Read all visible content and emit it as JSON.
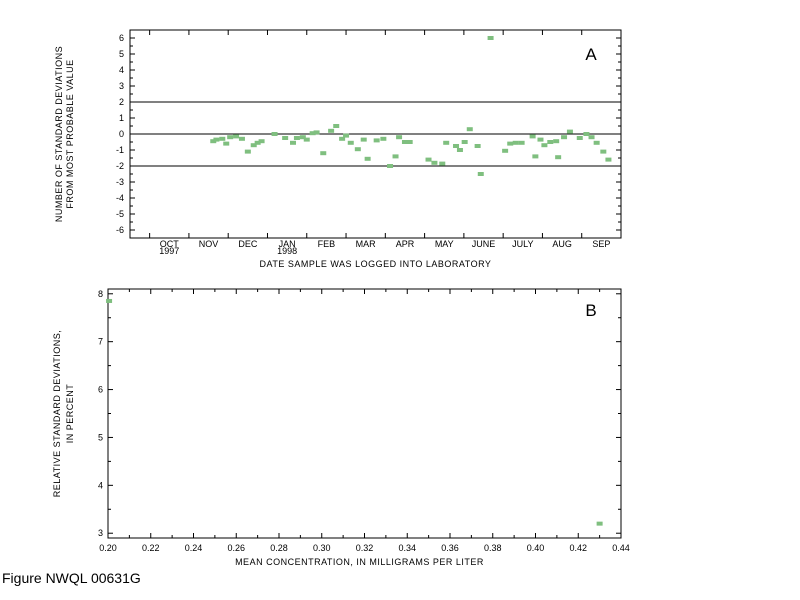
{
  "caption": "Figure NWQL 00631G",
  "colors": {
    "point": "#7fbf7f",
    "axis": "#000000"
  },
  "chart_data": [
    {
      "type": "scatter",
      "panel_label": "A",
      "ylabel": [
        "NUMBER OF STANDARD DEVIATIONS",
        "FROM MOST PROBABLE VALUE"
      ],
      "xlabel": "DATE SAMPLE WAS LOGGED INTO LABORATORY",
      "ylim": [
        -6.5,
        6.5
      ],
      "yticks": [
        "6",
        "5",
        "4",
        "3",
        "2",
        "1",
        "0",
        "-1",
        "-2",
        "-3",
        "-4",
        "-5",
        "-6"
      ],
      "x_unit": "month (1 = Oct 1997)",
      "xlim": [
        0.0,
        12.5
      ],
      "month_labels": [
        "OCT",
        "NOV",
        "DEC",
        "JAN",
        "FEB",
        "MAR",
        "APR",
        "MAY",
        "JUNE",
        "JULY",
        "AUG",
        "SEP"
      ],
      "year_labels": [
        {
          "month": "OCT",
          "year": "1997"
        },
        {
          "month": "JAN",
          "year": "1998"
        }
      ],
      "reference_lines": [
        2,
        0,
        -2
      ],
      "grid": false,
      "points": [
        [
          2.12,
          -0.45
        ],
        [
          2.2,
          -0.35
        ],
        [
          2.35,
          -0.3
        ],
        [
          2.45,
          -0.6
        ],
        [
          2.55,
          -0.2
        ],
        [
          2.7,
          -0.15
        ],
        [
          2.85,
          -0.3
        ],
        [
          3.0,
          -1.1
        ],
        [
          3.15,
          -0.7
        ],
        [
          3.25,
          -0.55
        ],
        [
          3.35,
          -0.45
        ],
        [
          3.68,
          0.0
        ],
        [
          3.95,
          -0.25
        ],
        [
          4.15,
          -0.55
        ],
        [
          4.25,
          -0.25
        ],
        [
          4.4,
          -0.2
        ],
        [
          4.5,
          -0.35
        ],
        [
          4.65,
          0.05
        ],
        [
          4.75,
          0.1
        ],
        [
          4.92,
          -1.2
        ],
        [
          5.12,
          0.2
        ],
        [
          5.25,
          0.5
        ],
        [
          5.4,
          -0.3
        ],
        [
          5.5,
          -0.1
        ],
        [
          5.62,
          -0.55
        ],
        [
          5.8,
          -0.95
        ],
        [
          5.95,
          -0.35
        ],
        [
          6.05,
          -1.55
        ],
        [
          6.28,
          -0.4
        ],
        [
          6.45,
          -0.3
        ],
        [
          6.62,
          -2.0
        ],
        [
          6.76,
          -1.4
        ],
        [
          6.85,
          -0.2
        ],
        [
          7.0,
          -0.5
        ],
        [
          7.12,
          -0.5
        ],
        [
          7.6,
          -1.6
        ],
        [
          7.75,
          -1.8
        ],
        [
          7.95,
          -1.85
        ],
        [
          8.05,
          -0.55
        ],
        [
          8.3,
          -0.75
        ],
        [
          8.4,
          -1.0
        ],
        [
          8.52,
          -0.5
        ],
        [
          8.65,
          0.3
        ],
        [
          8.85,
          -0.75
        ],
        [
          8.93,
          -2.5
        ],
        [
          9.18,
          6.0
        ],
        [
          9.55,
          -1.05
        ],
        [
          9.68,
          -0.6
        ],
        [
          9.82,
          -0.55
        ],
        [
          9.97,
          -0.55
        ],
        [
          10.25,
          -0.15
        ],
        [
          10.32,
          -1.4
        ],
        [
          10.45,
          -0.35
        ],
        [
          10.55,
          -0.7
        ],
        [
          10.7,
          -0.5
        ],
        [
          10.85,
          -0.45
        ],
        [
          10.9,
          -1.45
        ],
        [
          11.05,
          -0.2
        ],
        [
          11.2,
          0.15
        ],
        [
          11.45,
          -0.25
        ],
        [
          11.62,
          0.0
        ],
        [
          11.75,
          -0.2
        ],
        [
          11.88,
          -0.55
        ],
        [
          12.05,
          -1.1
        ],
        [
          12.18,
          -1.6
        ]
      ]
    },
    {
      "type": "scatter",
      "panel_label": "B",
      "ylabel": [
        "RELATIVE STANDARD DEVIATIONS,",
        "IN PERCENT"
      ],
      "xlabel": "MEAN CONCENTRATION, IN MILLIGRAMS PER LITER",
      "xlim": [
        0.2,
        0.44
      ],
      "ylim": [
        2.9,
        8.1
      ],
      "xticks": [
        "0.20",
        "0.22",
        "0.24",
        "0.26",
        "0.28",
        "0.30",
        "0.32",
        "0.34",
        "0.36",
        "0.38",
        "0.40",
        "0.42",
        "0.44"
      ],
      "yticks": [
        "8",
        "7",
        "6",
        "5",
        "4",
        "3"
      ],
      "grid": false,
      "points": [
        [
          0.2005,
          7.85
        ],
        [
          0.43,
          3.2
        ]
      ]
    }
  ]
}
